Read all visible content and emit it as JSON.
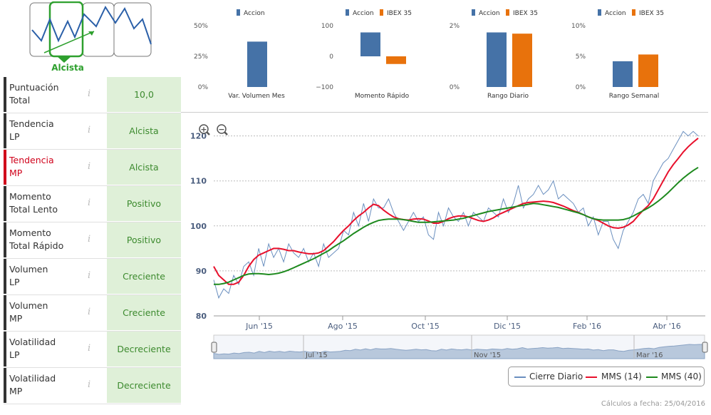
{
  "trend_card": {
    "label": "Alcista"
  },
  "sidebar": [
    {
      "label1": "Puntuación",
      "label2": "Total",
      "value": "10,0",
      "active": false
    },
    {
      "label1": "Tendencia",
      "label2": "LP",
      "value": "Alcista",
      "active": false
    },
    {
      "label1": "Tendencia",
      "label2": "MP",
      "value": "Alcista",
      "active": true
    },
    {
      "label1": "Momento",
      "label2": "Total Lento",
      "value": "Positivo",
      "active": false
    },
    {
      "label1": "Momento",
      "label2": "Total Rápido",
      "value": "Positivo",
      "active": false
    },
    {
      "label1": "Volumen",
      "label2": "LP",
      "value": "Creciente",
      "active": false
    },
    {
      "label1": "Volumen",
      "label2": "MP",
      "value": "Creciente",
      "active": false
    },
    {
      "label1": "Volatilidad",
      "label2": "LP",
      "value": "Decreciente",
      "active": false
    },
    {
      "label1": "Volatilidad",
      "label2": "MP",
      "value": "Decreciente",
      "active": false
    }
  ],
  "colors": {
    "accion": "#4572a7",
    "ibex": "#e8720c",
    "price": "#6a8fbf",
    "mms14": "#e8102c",
    "mms40": "#1e8a1e",
    "value_bg": "#dff0d8",
    "value_text": "#3c8a2e"
  },
  "chart_data": [
    {
      "type": "bar",
      "title": "Var. Volumen Mes",
      "yticks": [
        "50%",
        "25%",
        "0%"
      ],
      "ylim": [
        0,
        50
      ],
      "series": [
        {
          "name": "Accion",
          "values": [
            37
          ]
        }
      ]
    },
    {
      "type": "bar",
      "title": "Momento Rápido",
      "yticks": [
        "100",
        "0",
        "−100"
      ],
      "ylim": [
        -100,
        100
      ],
      "series": [
        {
          "name": "Accion",
          "values": [
            78
          ]
        },
        {
          "name": "IBEX 35",
          "values": [
            -25
          ]
        }
      ]
    },
    {
      "type": "bar",
      "title": "Rango Diario",
      "yticks": [
        "2%",
        "0%"
      ],
      "ylim": [
        0,
        2
      ],
      "series": [
        {
          "name": "Accion",
          "values": [
            1.78
          ]
        },
        {
          "name": "IBEX 35",
          "values": [
            1.74
          ]
        }
      ]
    },
    {
      "type": "bar",
      "title": "Rango Semanal",
      "yticks": [
        "10%",
        "5%",
        "0%"
      ],
      "ylim": [
        0,
        10
      ],
      "series": [
        {
          "name": "Accion",
          "values": [
            4.2
          ]
        },
        {
          "name": "IBEX 35",
          "values": [
            5.3
          ]
        }
      ]
    },
    {
      "type": "line",
      "ylim": [
        80,
        122
      ],
      "yticks": [
        80,
        90,
        100,
        110,
        120
      ],
      "xticks": [
        "Jun '15",
        "Ago '15",
        "Oct '15",
        "Dic '15",
        "Feb '16",
        "Abr '16"
      ],
      "navigator_ticks": [
        "Jul '15",
        "Nov '15",
        "Mar '16"
      ],
      "zoom": {
        "in": "+",
        "out": "−"
      },
      "series": [
        {
          "name": "Cierre Diario",
          "values": [
            88,
            84,
            86,
            85,
            89,
            87,
            91,
            92,
            89,
            95,
            91,
            96,
            93,
            95,
            92,
            96,
            94,
            93,
            95,
            92,
            94,
            91,
            96,
            93,
            94,
            95,
            99,
            98,
            103,
            100,
            105,
            101,
            106,
            104,
            104,
            106,
            103,
            101,
            99,
            101,
            103,
            101,
            102,
            98,
            97,
            103,
            100,
            104,
            102,
            101,
            103,
            100,
            103,
            102,
            101,
            104,
            103,
            102,
            106,
            103,
            105,
            109,
            104,
            106,
            107,
            109,
            107,
            108,
            110,
            106,
            107,
            106,
            105,
            103,
            104,
            100,
            102,
            98,
            101,
            101,
            97,
            95,
            99,
            101,
            103,
            106,
            107,
            105,
            110,
            112,
            114,
            115,
            117,
            119,
            121,
            120,
            121,
            120
          ]
        },
        {
          "name": "MMS (14)",
          "values": [
            91,
            89,
            88,
            87,
            87,
            87.5,
            89,
            91,
            92.5,
            93.5,
            94,
            94.5,
            95,
            95,
            94.8,
            94.5,
            94.5,
            94.2,
            94,
            93.8,
            93.8,
            94,
            94.5,
            95.5,
            96.5,
            97.8,
            99,
            100,
            101.2,
            102.2,
            103,
            104,
            104.8,
            104.5,
            103.5,
            102.7,
            102,
            101.6,
            101.4,
            101.3,
            101.5,
            101.6,
            101.5,
            101.1,
            100.6,
            100.6,
            101,
            101.6,
            102,
            102.2,
            102.2,
            102,
            101.6,
            101.2,
            101,
            101.3,
            101.8,
            102.5,
            103,
            103.5,
            104,
            104.5,
            105,
            105.2,
            105.3,
            105.4,
            105.5,
            105.4,
            105.2,
            104.8,
            104.4,
            103.9,
            103.4,
            103,
            102.5,
            102,
            101.6,
            101.2,
            100.6,
            100,
            99.6,
            99.5,
            99.7,
            100.2,
            101,
            102.3,
            103.5,
            104.5,
            106,
            108,
            110,
            112,
            113.6,
            115,
            116.4,
            117.6,
            118.6,
            119.5
          ]
        },
        {
          "name": "MMS (40)",
          "values": [
            87,
            87,
            87.2,
            87.5,
            88,
            88.5,
            89,
            89.3,
            89.4,
            89.4,
            89.3,
            89.2,
            89.3,
            89.5,
            89.8,
            90.2,
            90.7,
            91.2,
            91.7,
            92.2,
            92.7,
            93.3,
            93.9,
            94.5,
            95.3,
            96,
            96.7,
            97.5,
            98.3,
            99,
            99.7,
            100.3,
            100.8,
            101.2,
            101.4,
            101.5,
            101.5,
            101.5,
            101.4,
            101.2,
            101,
            100.8,
            100.8,
            100.8,
            100.9,
            101,
            101.1,
            101.2,
            101.3,
            101.5,
            101.7,
            102,
            102.3,
            102.6,
            102.9,
            103.2,
            103.4,
            103.6,
            103.8,
            104,
            104.2,
            104.4,
            104.6,
            104.8,
            105,
            104.9,
            104.7,
            104.5,
            104.3,
            104.1,
            103.8,
            103.5,
            103.2,
            102.9,
            102.5,
            102,
            101.6,
            101.4,
            101.3,
            101.3,
            101.3,
            101.3,
            101.4,
            101.7,
            102.2,
            102.8,
            103.4,
            104,
            104.7,
            105.5,
            106.4,
            107.4,
            108.5,
            109.6,
            110.6,
            111.5,
            112.3,
            113
          ]
        }
      ]
    }
  ],
  "legend": {
    "price": "Cierre Diario",
    "mms14": "MMS (14)",
    "mms40": "MMS (40)"
  },
  "footer": "Cálculos a fecha: 25/04/2016"
}
